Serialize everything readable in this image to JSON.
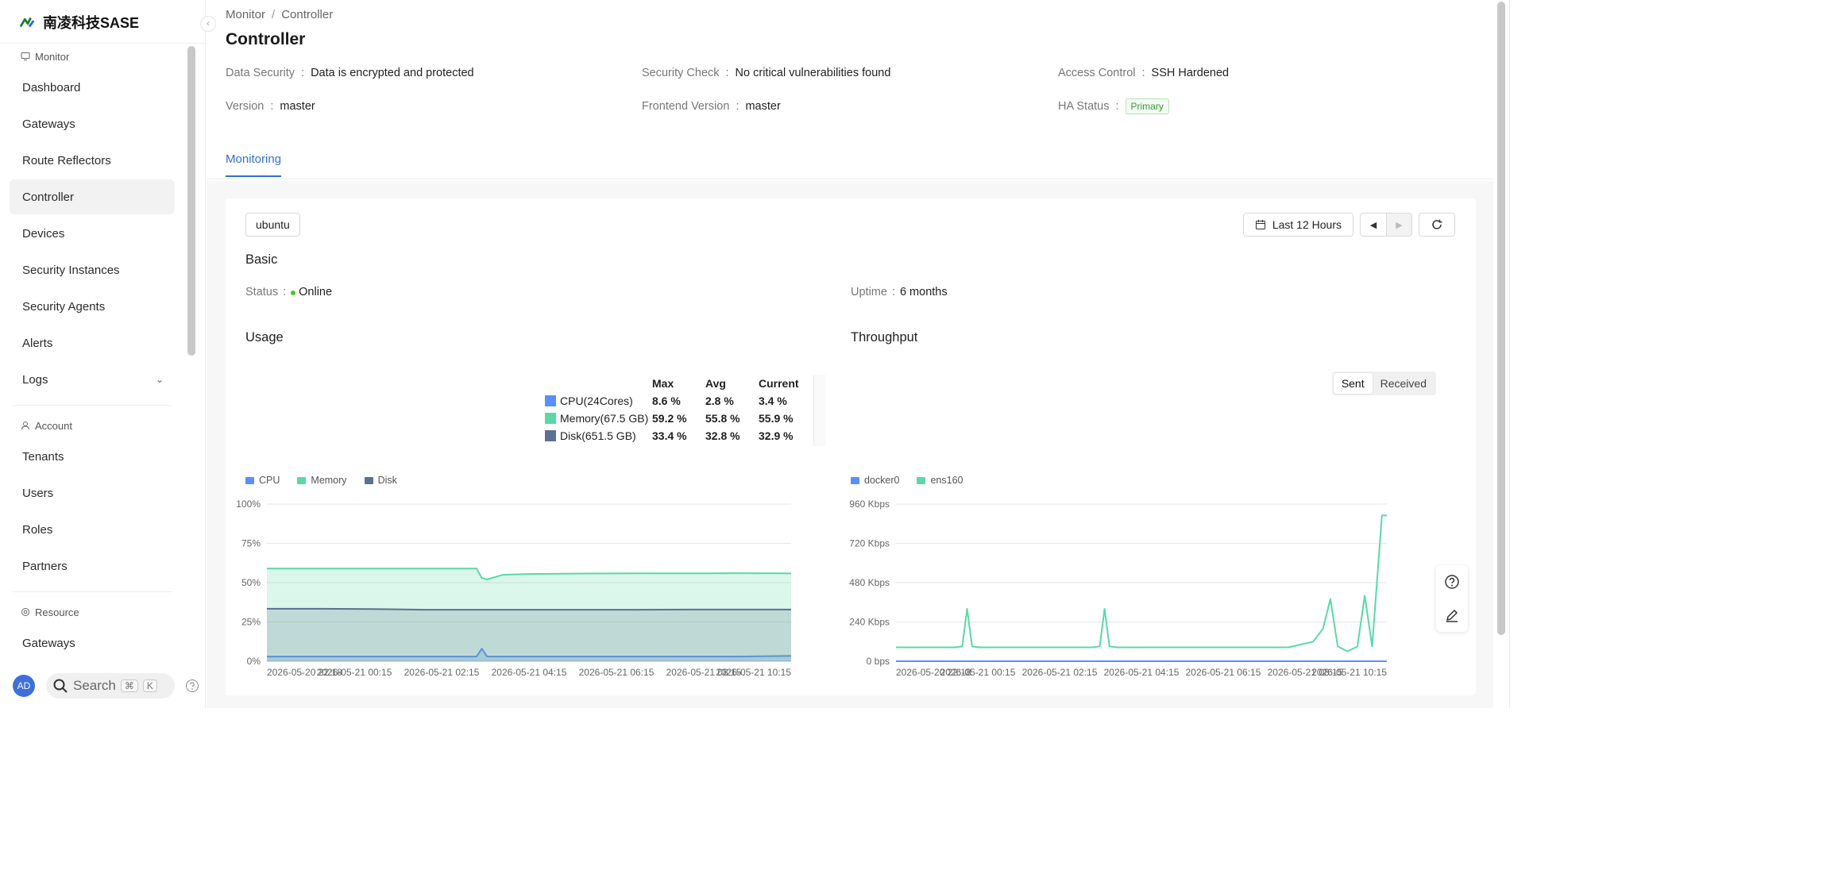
{
  "brand": {
    "name": "南凌科技SASE",
    "logo_color": "#1f7a3a"
  },
  "sidebar": {
    "groups": [
      {
        "label": "Monitor",
        "icon": "monitor-icon"
      },
      {
        "label": "Account",
        "icon": "user-icon"
      },
      {
        "label": "Resource",
        "icon": "resource-icon"
      }
    ],
    "monitor_items": [
      "Dashboard",
      "Gateways",
      "Route Reflectors",
      "Controller",
      "Devices",
      "Security Instances",
      "Security Agents",
      "Alerts",
      "Logs"
    ],
    "account_items": [
      "Tenants",
      "Users",
      "Roles",
      "Partners"
    ],
    "resource_items": [
      "Gateways"
    ],
    "active_item": "Controller",
    "footer": {
      "avatar": "AD",
      "search_label": "Search",
      "kbd_1": "⌘",
      "kbd_2": "K"
    }
  },
  "breadcrumb": {
    "parent": "Monitor",
    "sep": "/",
    "current": "Controller"
  },
  "page": {
    "title": "Controller",
    "descriptions": {
      "data_security_label": "Data Security",
      "data_security_value": "Data is encrypted and protected",
      "security_check_label": "Security Check",
      "security_check_value": "No critical vulnerabilities found",
      "access_control_label": "Access Control",
      "access_control_value": "SSH Hardened",
      "version_label": "Version",
      "version_value": "master",
      "frontend_version_label": "Frontend Version",
      "frontend_version_value": "master",
      "ha_status_label": "HA Status",
      "ha_status_value": "Primary"
    },
    "tab": "Monitoring"
  },
  "monitor": {
    "host": "ubuntu",
    "range_label": "Last 12 Hours",
    "basic_title": "Basic",
    "status_label": "Status",
    "status_value": "Online",
    "uptime_label": "Uptime",
    "uptime_value": "6 months",
    "usage_title": "Usage",
    "throughput_title": "Throughput",
    "usage_table": {
      "headers": [
        "",
        "Max",
        "Avg",
        "Current"
      ],
      "rows": [
        {
          "name": "CPU(24Cores)",
          "max": "8.6 %",
          "avg": "2.8 %",
          "current": "3.4 %",
          "color": "#5b8ff9"
        },
        {
          "name": "Memory(67.5 GB)",
          "max": "59.2 %",
          "avg": "55.8 %",
          "current": "55.9 %",
          "color": "#5ad8a6"
        },
        {
          "name": "Disk(651.5 GB)",
          "max": "33.4 %",
          "avg": "32.8 %",
          "current": "32.9 %",
          "color": "#5d7092"
        }
      ]
    },
    "throughput_toggle": [
      "Sent",
      "Received"
    ],
    "throughput_selected": "Sent"
  },
  "chart_data": [
    {
      "type": "area",
      "legend": [
        "CPU",
        "Memory",
        "Disk"
      ],
      "colors": {
        "CPU": "#5b8ff9",
        "Memory": "#5ad8a6",
        "Disk": "#5d7092"
      },
      "y_ticks": [
        "100%",
        "75%",
        "50%",
        "25%",
        "0%"
      ],
      "ylim": [
        0,
        100
      ],
      "x_ticks": [
        "2026-05-20 22:18",
        "2026-05-21 00:15",
        "2026-05-21 02:15",
        "2026-05-21 04:15",
        "2026-05-21 06:15",
        "2026-05-21 08:15",
        "2026-05-21 10:15"
      ],
      "x": [
        0,
        0.1,
        0.2,
        0.3,
        0.35,
        0.4,
        0.41,
        0.42,
        0.45,
        0.5,
        0.6,
        0.7,
        0.8,
        0.9,
        1.0
      ],
      "series": [
        {
          "name": "CPU",
          "values": [
            3,
            3,
            3,
            3,
            3,
            3,
            8,
            3,
            3,
            3,
            3,
            3,
            3,
            3,
            3.4
          ]
        },
        {
          "name": "Memory",
          "values": [
            59,
            59,
            59,
            59,
            59,
            59,
            53,
            52,
            55,
            55.5,
            55.8,
            55.9,
            55.9,
            56,
            55.9
          ]
        },
        {
          "name": "Disk",
          "values": [
            33.4,
            33.4,
            33.2,
            32.8,
            32.8,
            32.8,
            32.8,
            32.8,
            32.8,
            32.8,
            32.8,
            32.8,
            32.9,
            32.9,
            32.9
          ]
        }
      ]
    },
    {
      "type": "line",
      "legend": [
        "docker0",
        "ens160"
      ],
      "colors": {
        "docker0": "#5b8ff9",
        "ens160": "#5ad8a6"
      },
      "y_ticks": [
        "960 Kbps",
        "720 Kbps",
        "480 Kbps",
        "240 Kbps",
        "0 bps"
      ],
      "ylim": [
        0,
        960
      ],
      "x_ticks": [
        "2026-05-20 22:18",
        "2026-05-21 00:15",
        "2026-05-21 02:15",
        "2026-05-21 04:15",
        "2026-05-21 06:15",
        "2026-05-21 08:15",
        "2026-05-21 10:15"
      ],
      "x": [
        0,
        0.12,
        0.135,
        0.145,
        0.155,
        0.17,
        0.4,
        0.415,
        0.425,
        0.435,
        0.45,
        0.8,
        0.85,
        0.87,
        0.885,
        0.9,
        0.92,
        0.94,
        0.955,
        0.97,
        0.99,
        1.0
      ],
      "series": [
        {
          "name": "docker0",
          "values": [
            0,
            0,
            0,
            0,
            0,
            0,
            0,
            0,
            0,
            0,
            0,
            0,
            0,
            0,
            0,
            0,
            0,
            0,
            0,
            0,
            0,
            0
          ]
        },
        {
          "name": "ens160",
          "values": [
            85,
            85,
            90,
            320,
            90,
            85,
            85,
            90,
            320,
            90,
            85,
            85,
            120,
            200,
            380,
            90,
            60,
            90,
            400,
            90,
            890,
            890
          ]
        }
      ]
    }
  ]
}
